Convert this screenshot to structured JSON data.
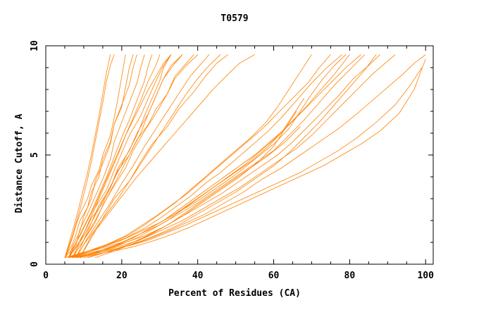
{
  "chart_data": {
    "type": "line",
    "title": "T0579",
    "xlabel": "Percent of Residues (CA)",
    "ylabel": "Distance Cutoff, A",
    "xlim": [
      0,
      102
    ],
    "ylim": [
      0,
      10
    ],
    "x_ticks": [
      "0",
      "20",
      "40",
      "60",
      "80",
      "100"
    ],
    "y_ticks": [
      "0",
      "5",
      "10"
    ],
    "grid": false,
    "legend": "none",
    "series_color": "#ff8000",
    "series": [
      {
        "x": [
          5,
          6,
          7,
          8,
          9,
          10,
          11,
          12,
          13,
          14,
          15,
          16,
          17
        ],
        "y": [
          0.3,
          0.9,
          1.5,
          2.1,
          2.8,
          3.5,
          4.2,
          5.0,
          5.9,
          6.8,
          7.8,
          8.8,
          9.6
        ]
      },
      {
        "x": [
          5,
          6,
          7,
          8,
          9,
          10,
          11,
          12,
          13,
          14,
          15,
          16,
          17,
          18
        ],
        "y": [
          0.3,
          0.8,
          1.3,
          1.9,
          2.5,
          3.2,
          3.9,
          4.7,
          5.6,
          6.5,
          7.4,
          8.4,
          9.1,
          9.6
        ]
      },
      {
        "x": [
          5,
          6,
          7,
          8,
          9,
          11,
          12,
          14,
          15,
          17,
          18,
          19,
          20,
          21
        ],
        "y": [
          0.3,
          0.7,
          1.2,
          1.8,
          2.3,
          3.0,
          3.6,
          4.3,
          5.0,
          5.9,
          6.7,
          7.6,
          8.6,
          9.6
        ]
      },
      {
        "x": [
          5,
          7,
          8,
          9,
          11,
          12,
          14,
          15,
          17,
          18,
          20,
          21,
          22,
          23
        ],
        "y": [
          0.3,
          0.9,
          1.4,
          2.0,
          2.6,
          3.3,
          4.0,
          4.8,
          5.6,
          6.4,
          7.2,
          8.1,
          9.0,
          9.6
        ]
      },
      {
        "x": [
          6,
          7,
          9,
          10,
          12,
          13,
          15,
          17,
          18,
          20,
          22,
          23,
          24
        ],
        "y": [
          0.3,
          0.8,
          1.5,
          2.2,
          3.0,
          3.8,
          4.6,
          5.5,
          6.4,
          7.3,
          8.2,
          9.0,
          9.6
        ]
      },
      {
        "x": [
          6,
          8,
          9,
          11,
          13,
          15,
          17,
          18,
          20,
          22,
          24,
          25,
          26
        ],
        "y": [
          0.3,
          0.9,
          1.6,
          2.3,
          3.1,
          3.9,
          4.8,
          5.6,
          6.5,
          7.4,
          8.3,
          9.0,
          9.6
        ]
      },
      {
        "x": [
          6,
          8,
          10,
          12,
          14,
          16,
          18,
          20,
          22,
          24,
          26,
          27,
          28
        ],
        "y": [
          0.3,
          1.0,
          1.7,
          2.4,
          3.2,
          4.0,
          4.9,
          5.8,
          6.6,
          7.5,
          8.4,
          9.1,
          9.6
        ]
      },
      {
        "x": [
          7,
          9,
          11,
          13,
          15,
          17,
          19,
          21,
          23,
          25,
          27,
          29,
          30
        ],
        "y": [
          0.3,
          1.0,
          1.8,
          2.6,
          3.4,
          4.2,
          5.0,
          5.9,
          6.7,
          7.5,
          8.4,
          9.1,
          9.6
        ]
      },
      {
        "x": [
          7,
          9,
          11,
          13,
          16,
          18,
          20,
          22,
          25,
          27,
          29,
          31,
          33
        ],
        "y": [
          0.3,
          1.0,
          1.8,
          2.6,
          3.4,
          4.3,
          5.1,
          5.9,
          6.8,
          7.6,
          8.4,
          9.1,
          9.6
        ]
      },
      {
        "x": [
          7,
          10,
          12,
          14,
          17,
          19,
          22,
          24,
          27,
          29,
          31,
          34,
          36
        ],
        "y": [
          0.3,
          1.1,
          1.9,
          2.7,
          3.5,
          4.4,
          5.2,
          6.0,
          6.9,
          7.7,
          8.5,
          9.2,
          9.6
        ]
      },
      {
        "x": [
          8,
          10,
          13,
          15,
          18,
          21,
          23,
          26,
          29,
          32,
          34,
          37,
          39
        ],
        "y": [
          0.3,
          1.1,
          1.9,
          2.7,
          3.6,
          4.4,
          5.2,
          6.1,
          6.9,
          7.8,
          8.6,
          9.2,
          9.6
        ]
      },
      {
        "x": [
          8,
          11,
          14,
          17,
          20,
          23,
          26,
          29,
          32,
          35,
          38,
          41,
          43
        ],
        "y": [
          0.3,
          1.2,
          2.0,
          2.8,
          3.7,
          4.5,
          5.4,
          6.2,
          7.0,
          7.8,
          8.6,
          9.2,
          9.6
        ]
      },
      {
        "x": [
          9,
          12,
          15,
          18,
          22,
          25,
          28,
          32,
          35,
          39,
          42,
          45,
          48
        ],
        "y": [
          0.3,
          1.2,
          2.1,
          3.0,
          3.8,
          4.7,
          5.5,
          6.3,
          7.1,
          7.9,
          8.6,
          9.2,
          9.6
        ]
      },
      {
        "x": [
          9,
          12,
          16,
          20,
          24,
          28,
          32,
          36,
          40,
          44,
          48,
          51,
          55
        ],
        "y": [
          0.3,
          1.3,
          2.2,
          3.1,
          4.0,
          4.8,
          5.6,
          6.4,
          7.2,
          8.0,
          8.7,
          9.2,
          9.6
        ]
      },
      {
        "x": [
          5,
          7,
          9,
          11,
          13,
          15,
          17,
          19,
          21,
          23,
          25,
          27,
          29,
          31,
          33
        ],
        "y": [
          0.3,
          0.7,
          1.3,
          2.0,
          2.7,
          3.5,
          4.3,
          5.1,
          5.9,
          6.6,
          7.3,
          8.0,
          8.6,
          9.2,
          9.6
        ]
      },
      {
        "x": [
          6,
          8,
          10,
          12,
          15,
          17,
          19,
          22,
          24,
          27,
          29,
          32,
          34,
          37,
          40
        ],
        "y": [
          0.3,
          0.8,
          1.4,
          2.1,
          2.8,
          3.5,
          4.3,
          5.0,
          5.7,
          6.4,
          7.1,
          7.8,
          8.5,
          9.1,
          9.6
        ]
      },
      {
        "x": [
          8,
          10,
          13,
          16,
          19,
          22,
          25,
          28,
          31,
          34,
          37,
          40,
          43,
          46
        ],
        "y": [
          0.3,
          0.9,
          1.6,
          2.3,
          3.0,
          3.8,
          4.6,
          5.4,
          6.2,
          7.0,
          7.8,
          8.5,
          9.1,
          9.6
        ]
      },
      {
        "x": [
          6,
          9,
          12,
          15,
          18,
          21,
          24,
          26,
          28,
          30,
          31,
          33
        ],
        "y": [
          0.3,
          1.0,
          1.9,
          2.9,
          3.9,
          4.9,
          5.9,
          6.8,
          7.6,
          8.4,
          9.0,
          9.6
        ]
      },
      {
        "x": [
          7,
          10,
          13,
          16,
          19,
          22,
          25,
          27,
          29,
          31,
          33,
          36
        ],
        "y": [
          0.3,
          1.1,
          2.0,
          3.0,
          4.0,
          5.0,
          6.0,
          6.9,
          7.7,
          8.5,
          9.1,
          9.6
        ]
      },
      {
        "x": [
          5,
          10,
          15,
          20,
          25,
          30,
          35,
          40,
          45,
          50,
          55,
          60,
          64,
          67,
          70,
          73,
          76,
          79
        ],
        "y": [
          0.3,
          0.55,
          0.8,
          1.1,
          1.5,
          1.9,
          2.4,
          2.9,
          3.5,
          4.1,
          4.8,
          5.5,
          6.2,
          7.0,
          7.8,
          8.5,
          9.1,
          9.6
        ]
      },
      {
        "x": [
          5,
          10,
          15,
          20,
          25,
          30,
          35,
          40,
          45,
          50,
          55,
          60,
          64,
          68,
          72,
          76,
          80,
          84
        ],
        "y": [
          0.3,
          0.5,
          0.75,
          1.0,
          1.4,
          1.8,
          2.3,
          2.8,
          3.4,
          4.0,
          4.6,
          5.2,
          5.9,
          6.6,
          7.4,
          8.2,
          8.9,
          9.6
        ]
      },
      {
        "x": [
          6,
          11,
          16,
          21,
          26,
          31,
          36,
          41,
          46,
          51,
          56,
          61,
          65,
          69,
          73,
          77,
          81,
          85,
          88
        ],
        "y": [
          0.3,
          0.5,
          0.7,
          1.0,
          1.3,
          1.7,
          2.2,
          2.7,
          3.2,
          3.8,
          4.4,
          5.0,
          5.6,
          6.3,
          7.0,
          7.7,
          8.5,
          9.1,
          9.6
        ]
      },
      {
        "x": [
          6,
          11,
          16,
          21,
          26,
          31,
          36,
          41,
          46,
          51,
          56,
          61,
          66,
          70,
          74,
          78,
          82,
          86,
          90,
          92
        ],
        "y": [
          0.3,
          0.45,
          0.65,
          0.9,
          1.2,
          1.6,
          2.0,
          2.5,
          3.0,
          3.5,
          4.1,
          4.7,
          5.3,
          5.9,
          6.6,
          7.3,
          8.0,
          8.7,
          9.3,
          9.6
        ]
      },
      {
        "x": [
          7,
          12,
          17,
          22,
          27,
          32,
          37,
          42,
          47,
          52,
          57,
          62,
          67,
          72,
          77,
          82,
          86,
          90,
          94,
          97,
          100
        ],
        "y": [
          0.3,
          0.45,
          0.65,
          0.85,
          1.15,
          1.5,
          1.9,
          2.3,
          2.8,
          3.3,
          3.9,
          4.4,
          5.0,
          5.6,
          6.2,
          6.9,
          7.5,
          8.1,
          8.7,
          9.2,
          9.6
        ]
      },
      {
        "x": [
          7,
          12,
          17,
          22,
          27,
          32,
          37,
          42,
          47,
          52,
          57,
          62,
          67,
          72,
          77,
          82,
          87,
          92,
          96,
          99
        ],
        "y": [
          0.3,
          0.45,
          0.65,
          0.85,
          1.1,
          1.45,
          1.8,
          2.2,
          2.6,
          3.0,
          3.4,
          3.8,
          4.2,
          4.7,
          5.2,
          5.8,
          6.5,
          7.3,
          8.2,
          9.0
        ]
      },
      {
        "x": [
          8,
          13,
          18,
          23,
          28,
          33,
          38,
          43,
          48,
          53,
          58,
          63,
          68,
          73,
          78,
          83,
          88,
          93,
          97,
          100
        ],
        "y": [
          0.3,
          0.45,
          0.6,
          0.8,
          1.05,
          1.35,
          1.7,
          2.1,
          2.5,
          2.9,
          3.3,
          3.7,
          4.1,
          4.5,
          5.0,
          5.5,
          6.1,
          6.9,
          8.0,
          9.4
        ]
      },
      {
        "x": [
          6,
          11,
          16,
          21,
          26,
          30,
          34,
          38,
          42,
          46,
          50,
          54,
          58,
          62,
          66,
          70,
          74,
          78
        ],
        "y": [
          0.3,
          0.55,
          0.85,
          1.2,
          1.65,
          2.1,
          2.6,
          3.1,
          3.7,
          4.2,
          4.8,
          5.4,
          6.0,
          6.7,
          7.5,
          8.3,
          9.0,
          9.6
        ]
      },
      {
        "x": [
          6,
          11,
          16,
          21,
          25,
          29,
          33,
          37,
          41,
          45,
          49,
          53,
          57,
          61,
          65,
          69,
          72,
          75
        ],
        "y": [
          0.3,
          0.6,
          0.9,
          1.3,
          1.75,
          2.2,
          2.7,
          3.2,
          3.8,
          4.4,
          5.0,
          5.6,
          6.2,
          6.9,
          7.6,
          8.3,
          9.0,
          9.6
        ]
      },
      {
        "x": [
          7,
          12,
          17,
          22,
          26,
          30,
          34,
          38,
          42,
          46,
          50,
          54,
          58,
          61,
          64,
          67,
          70
        ],
        "y": [
          0.3,
          0.6,
          0.95,
          1.35,
          1.8,
          2.3,
          2.8,
          3.4,
          4.0,
          4.6,
          5.2,
          5.8,
          6.5,
          7.2,
          8.0,
          8.8,
          9.6
        ]
      },
      {
        "x": [
          8,
          13,
          18,
          23,
          27,
          31,
          35,
          39,
          43,
          47,
          51,
          55,
          59,
          63,
          67,
          71,
          75,
          79,
          83
        ],
        "y": [
          0.3,
          0.55,
          0.85,
          1.2,
          1.6,
          2.0,
          2.5,
          3.0,
          3.5,
          4.0,
          4.5,
          5.0,
          5.6,
          6.2,
          6.9,
          7.6,
          8.3,
          9.0,
          9.6
        ]
      },
      {
        "x": [
          9,
          14,
          19,
          24,
          28,
          32,
          36,
          40,
          44,
          48,
          52,
          56,
          60,
          64,
          68,
          72,
          76,
          80
        ],
        "y": [
          0.3,
          0.55,
          0.85,
          1.2,
          1.6,
          2.0,
          2.5,
          3.0,
          3.5,
          4.0,
          4.5,
          5.1,
          5.7,
          6.4,
          7.1,
          7.9,
          8.7,
          9.6
        ]
      },
      {
        "x": [
          10,
          15,
          20,
          25,
          30,
          35,
          40,
          45,
          50,
          55,
          60,
          64,
          68,
          72,
          76,
          80,
          84,
          87
        ],
        "y": [
          0.3,
          0.5,
          0.75,
          1.05,
          1.4,
          1.8,
          2.3,
          2.8,
          3.3,
          3.9,
          4.5,
          5.1,
          5.8,
          6.5,
          7.3,
          8.1,
          8.9,
          9.6
        ]
      },
      {
        "x": [
          13,
          18,
          23,
          28,
          33,
          38,
          43,
          48,
          53,
          58,
          63,
          67
        ],
        "y": [
          0.3,
          0.6,
          0.95,
          1.4,
          1.9,
          2.5,
          3.1,
          3.7,
          4.3,
          4.9,
          5.6,
          6.3
        ]
      },
      {
        "x": [
          11,
          16,
          21,
          26,
          31,
          36,
          41,
          46,
          51,
          56,
          60,
          63,
          66
        ],
        "y": [
          0.3,
          0.55,
          0.85,
          1.25,
          1.7,
          2.2,
          2.8,
          3.4,
          4.0,
          4.7,
          5.4,
          6.2,
          7.0
        ]
      },
      {
        "x": [
          9,
          14,
          19,
          24,
          29,
          34,
          39,
          44,
          49,
          54,
          58,
          62,
          65,
          68
        ],
        "y": [
          0.3,
          0.6,
          0.9,
          1.3,
          1.8,
          2.3,
          2.9,
          3.5,
          4.1,
          4.7,
          5.3,
          6.0,
          6.8,
          7.6
        ]
      }
    ]
  }
}
